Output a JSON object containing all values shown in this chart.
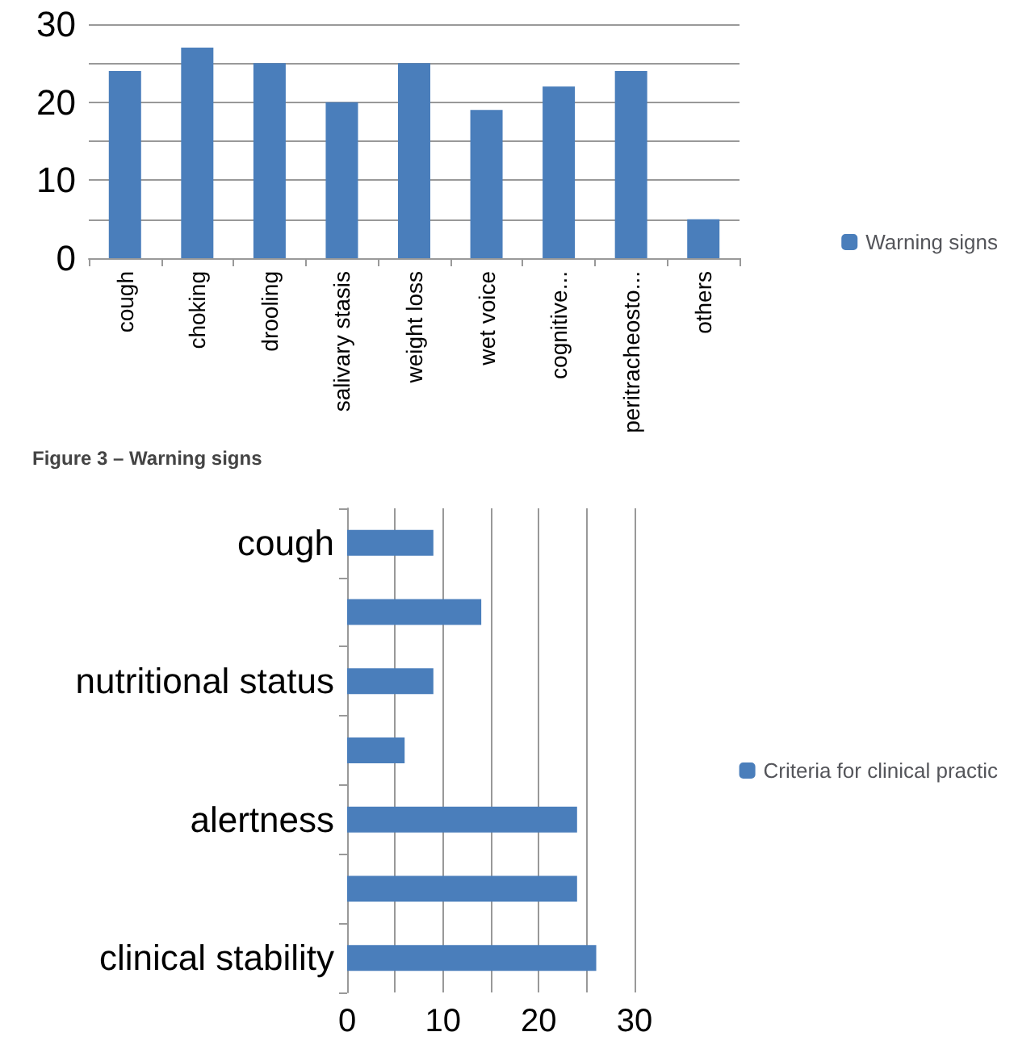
{
  "chart_data": [
    {
      "type": "bar",
      "categories": [
        "cough",
        "choking",
        "drooling",
        "salivary stasis",
        "weight loss",
        "wet voice",
        "cognitive...",
        "peritracheosto...",
        "others"
      ],
      "series": [
        {
          "name": "Warning signs",
          "color": "#4a7ebb",
          "values": [
            24,
            27,
            25,
            20,
            25,
            19,
            22,
            24,
            5
          ]
        }
      ],
      "ylim": [
        0,
        30
      ],
      "yticks": [
        0,
        10,
        20,
        30
      ],
      "grid": "y",
      "legend": "right",
      "annotations": [
        "Figure 3 – Warning signs"
      ]
    },
    {
      "type": "bar",
      "orientation": "horizontal",
      "categories": [
        "cough",
        null,
        "nutritional status",
        null,
        "alertness",
        null,
        "clinical stability"
      ],
      "series": [
        {
          "name": "Criteria for clinical practic",
          "color": "#4a7ebb",
          "values": [
            9,
            14,
            9,
            6,
            24,
            24,
            26
          ]
        }
      ],
      "xlim": [
        0,
        30
      ],
      "xticks": [
        0,
        10,
        20,
        30
      ],
      "grid": "x",
      "legend": "right"
    }
  ]
}
